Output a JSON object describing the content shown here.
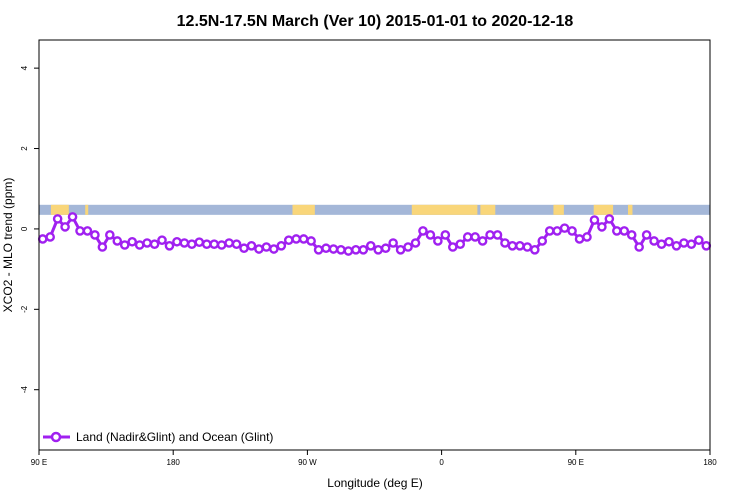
{
  "chart_data": {
    "type": "line",
    "title": "12.5N-17.5N March (Ver 10)   2015-01-01 to 2020-12-18",
    "xlabel": "Longitude (deg E)",
    "ylabel": "XCO2 - MLO trend (ppm)",
    "x_ticks": [
      {
        "value": 90,
        "label": "90 E"
      },
      {
        "value": 180,
        "label": "180"
      },
      {
        "value": 270,
        "label": "90 W"
      },
      {
        "value": 360,
        "label": "0"
      },
      {
        "value": 450,
        "label": "90 E"
      },
      {
        "value": 540,
        "label": "180"
      }
    ],
    "y_ticks": [
      {
        "value": -4,
        "label": "-4"
      },
      {
        "value": -2,
        "label": "-2"
      },
      {
        "value": 0,
        "label": "0"
      },
      {
        "value": 2,
        "label": "2"
      },
      {
        "value": 4,
        "label": "4"
      }
    ],
    "xlim": [
      90,
      540
    ],
    "ylim": [
      -5.5,
      4.7
    ],
    "grid": false,
    "legend_position": "bottom-left",
    "colors": {
      "series": "#a020f0",
      "ocean": "#a4b7d8",
      "land": "#f9d67a"
    },
    "land_ocean_band": {
      "ymin": 0.35,
      "ymax": 0.6,
      "land_segments": [
        [
          98,
          110
        ],
        [
          121,
          123
        ],
        [
          260,
          275
        ],
        [
          340,
          384
        ],
        [
          386,
          396
        ],
        [
          435,
          442
        ],
        [
          462,
          475
        ],
        [
          485,
          488
        ]
      ]
    },
    "series": [
      {
        "name": "Land (Nadir&Glint) and Ocean (Glint)",
        "x": [
          92.5,
          97.5,
          102.5,
          107.5,
          112.5,
          117.5,
          122.5,
          127.5,
          132.5,
          137.5,
          142.5,
          147.5,
          152.5,
          157.5,
          162.5,
          167.5,
          172.5,
          177.5,
          182.5,
          187.5,
          192.5,
          197.5,
          202.5,
          207.5,
          212.5,
          217.5,
          222.5,
          227.5,
          232.5,
          237.5,
          242.5,
          247.5,
          252.5,
          257.5,
          262.5,
          267.5,
          272.5,
          277.5,
          282.5,
          287.5,
          292.5,
          297.5,
          302.5,
          307.5,
          312.5,
          317.5,
          322.5,
          327.5,
          332.5,
          337.5,
          342.5,
          347.5,
          352.5,
          357.5,
          362.5,
          367.5,
          372.5,
          377.5,
          382.5,
          387.5,
          392.5,
          397.5,
          402.5,
          407.5,
          412.5,
          417.5,
          422.5,
          427.5,
          432.5,
          437.5,
          442.5,
          447.5,
          452.5,
          457.5,
          462.5,
          467.5,
          472.5,
          477.5,
          482.5,
          487.5,
          492.5,
          497.5,
          502.5,
          507.5,
          512.5,
          517.5,
          522.5,
          527.5,
          532.5,
          537.5
        ],
        "values": [
          -0.25,
          -0.2,
          0.25,
          0.05,
          0.3,
          -0.05,
          -0.05,
          -0.15,
          -0.45,
          -0.15,
          -0.3,
          -0.4,
          -0.32,
          -0.4,
          -0.35,
          -0.38,
          -0.28,
          -0.42,
          -0.32,
          -0.35,
          -0.38,
          -0.33,
          -0.38,
          -0.38,
          -0.4,
          -0.35,
          -0.38,
          -0.48,
          -0.42,
          -0.5,
          -0.45,
          -0.5,
          -0.42,
          -0.28,
          -0.25,
          -0.25,
          -0.3,
          -0.52,
          -0.48,
          -0.5,
          -0.52,
          -0.55,
          -0.52,
          -0.52,
          -0.42,
          -0.52,
          -0.48,
          -0.35,
          -0.52,
          -0.45,
          -0.35,
          -0.05,
          -0.15,
          -0.3,
          -0.15,
          -0.45,
          -0.38,
          -0.2,
          -0.2,
          -0.3,
          -0.15,
          -0.15,
          -0.35,
          -0.42,
          -0.42,
          -0.45,
          -0.52,
          -0.3,
          -0.05,
          -0.05,
          0.02,
          -0.05,
          -0.25,
          -0.2,
          0.22,
          0.05,
          0.25,
          -0.05,
          -0.05,
          -0.15,
          -0.45,
          -0.15,
          -0.3,
          -0.38,
          -0.32,
          -0.42,
          -0.35,
          -0.38,
          -0.28,
          -0.42
        ]
      }
    ]
  }
}
